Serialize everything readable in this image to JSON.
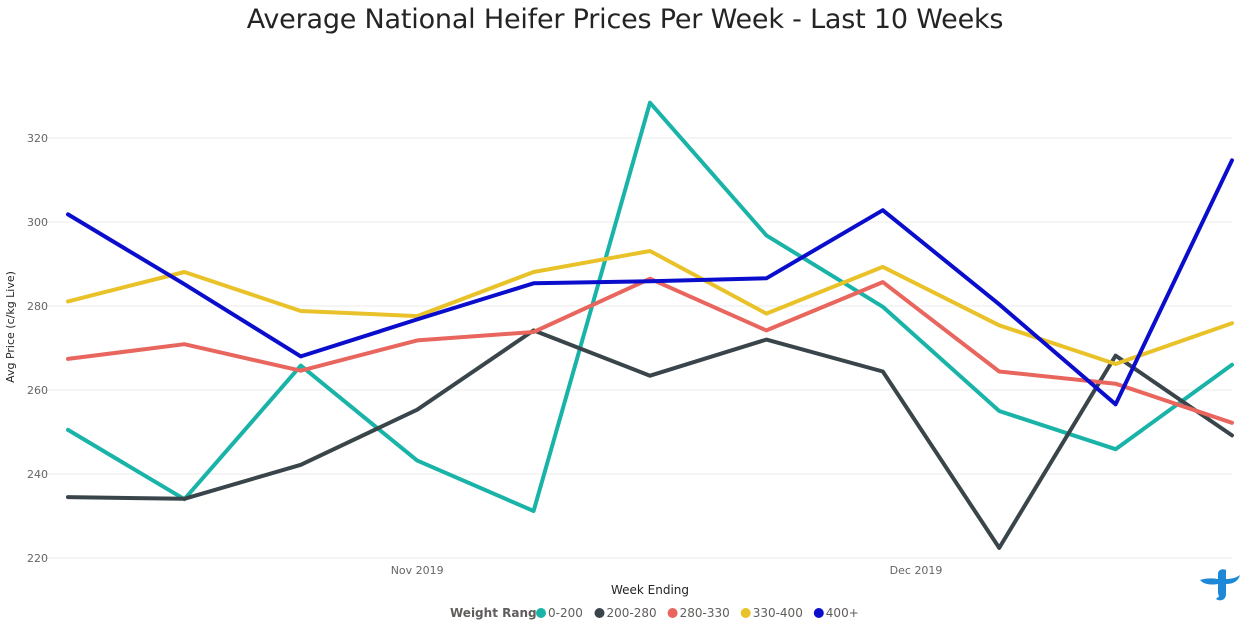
{
  "chart_data": {
    "type": "line",
    "title": "Average National Heifer Prices Per Week - Last 10 Weeks",
    "xlabel": "Week Ending",
    "ylabel": "Avg Price (c/kg Live)",
    "ylim": [
      220,
      330
    ],
    "yticks": [
      220,
      240,
      260,
      280,
      300,
      320
    ],
    "x": [
      "2019-10-11",
      "2019-10-18",
      "2019-10-25",
      "2019-11-01",
      "2019-11-08",
      "2019-11-15",
      "2019-11-22",
      "2019-11-29",
      "2019-12-06",
      "2019-12-13",
      "2019-12-20"
    ],
    "xticks": [
      {
        "label": "Nov 2019",
        "date": "2019-11-01"
      },
      {
        "label": "Dec 2019",
        "date": "2019-12-01"
      }
    ],
    "legend_title": "Weight Range",
    "legend_position": "bottom",
    "grid": true,
    "series": [
      {
        "name": "0-200",
        "color": "#19B3A8",
        "values": [
          250.5,
          234.0,
          265.8,
          243.2,
          231.2,
          328.4,
          296.8,
          279.8,
          255.0,
          245.9,
          266.0
        ]
      },
      {
        "name": "200-280",
        "color": "#39454A",
        "values": [
          234.5,
          234.1,
          242.2,
          255.3,
          274.2,
          263.4,
          272.0,
          264.4,
          222.4,
          268.2,
          249.2
        ]
      },
      {
        "name": "280-330",
        "color": "#E8665E",
        "values": [
          267.4,
          270.9,
          264.6,
          271.8,
          273.8,
          286.5,
          274.2,
          285.7,
          264.4,
          261.5,
          252.2
        ]
      },
      {
        "name": "330-400",
        "color": "#E9C22A",
        "values": [
          281.1,
          288.1,
          278.8,
          277.6,
          288.1,
          293.1,
          278.2,
          289.3,
          275.4,
          266.2,
          275.9
        ]
      },
      {
        "name": "400+",
        "color": "#0A0DCC",
        "values": [
          301.8,
          285.2,
          268.0,
          276.8,
          285.4,
          285.9,
          286.6,
          302.8,
          280.4,
          256.6,
          314.7
        ]
      }
    ]
  },
  "logo": {
    "name": "tt-logo",
    "color": "#1E88D8"
  }
}
